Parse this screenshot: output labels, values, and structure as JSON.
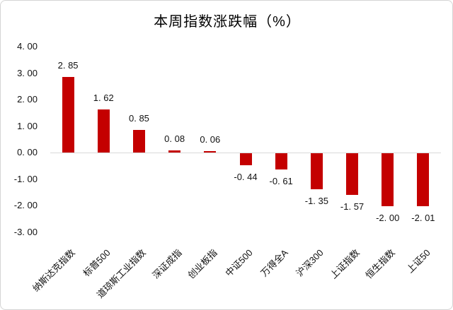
{
  "title": "本周指数涨跌幅（%）",
  "chart_data": {
    "type": "bar",
    "title": "本周指数涨跌幅（%）",
    "categories": [
      "纳斯达克指数",
      "标普500",
      "道琼斯工业指数",
      "深证成指",
      "创业板指",
      "中证500",
      "万得全A",
      "沪深300",
      "上证指数",
      "恒生指数",
      "上证50"
    ],
    "values": [
      2.85,
      1.62,
      0.85,
      0.08,
      0.06,
      -0.44,
      -0.61,
      -1.35,
      -1.57,
      -2.0,
      -2.01
    ],
    "value_labels": [
      "2. 85",
      "1. 62",
      "0. 85",
      "0. 08",
      "0. 06",
      "-0. 44",
      "-0. 61",
      "-1. 35",
      "-1. 57",
      "-2. 00",
      "-2. 01"
    ],
    "y_ticks": [
      {
        "value": 4,
        "label": "4. 00"
      },
      {
        "value": 3,
        "label": "3. 00"
      },
      {
        "value": 2,
        "label": "2. 00"
      },
      {
        "value": 1,
        "label": "1. 00"
      },
      {
        "value": 0,
        "label": "0. 00"
      },
      {
        "value": -1,
        "label": "-1. 00"
      },
      {
        "value": -2,
        "label": "-2. 00"
      },
      {
        "value": -3,
        "label": "-3. 00"
      }
    ],
    "ylim": [
      -3,
      4
    ],
    "xlabel": "",
    "ylabel": "",
    "grid": false,
    "legend_position": "none",
    "bar_color": "#c40000",
    "axis_line_color": "#d9d9d9",
    "text_color": "#111111"
  }
}
